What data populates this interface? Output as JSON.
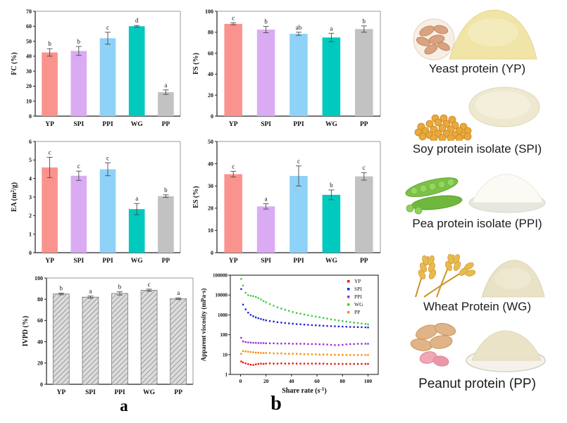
{
  "figure": {
    "panel_a": "a",
    "panel_b": "b"
  },
  "colors": {
    "bar_series": [
      "#FA938E",
      "#DAABF2",
      "#8FD2F7",
      "#00C9BE",
      "#C2C2C2"
    ],
    "hatch_fill": "#DCDCDC",
    "hatch_line": "#8A8A8A",
    "axis_dark": "#222222",
    "axis_light": "#999999",
    "error_bar": "#4A4A4A",
    "scatter": {
      "YP": "#EE1111",
      "SPI": "#2323DD",
      "PPI": "#9B30D6",
      "WG": "#3FCB3F",
      "PP": "#FF8C00"
    }
  },
  "chart_data": [
    {
      "id": "fc",
      "type": "bar",
      "ylabel": "FC (%)",
      "categories": [
        "YP",
        "SPI",
        "PPI",
        "WG",
        "PP"
      ],
      "values": [
        42.5,
        43.5,
        52,
        60,
        16
      ],
      "errors": [
        2.5,
        3,
        4,
        0.5,
        1.5
      ],
      "letters": [
        "b",
        "b",
        "c",
        "d",
        "a"
      ],
      "ylim": [
        0,
        70
      ],
      "yticks": [
        0,
        10,
        20,
        30,
        40,
        50,
        60,
        70
      ],
      "hatch": false
    },
    {
      "id": "fs",
      "type": "bar",
      "ylabel": "FS (%)",
      "categories": [
        "YP",
        "SPI",
        "PPI",
        "WG",
        "PP"
      ],
      "values": [
        88,
        82.5,
        78.5,
        75,
        83
      ],
      "errors": [
        1,
        3,
        1.5,
        4,
        3
      ],
      "letters": [
        "c",
        "b",
        "ab",
        "a",
        "b"
      ],
      "ylim": [
        0,
        100
      ],
      "yticks": [
        0,
        20,
        40,
        60,
        80,
        100
      ],
      "hatch": false
    },
    {
      "id": "ea",
      "type": "bar",
      "ylabel": "EA (m^{2}/g)",
      "categories": [
        "YP",
        "SPI",
        "PPI",
        "WG",
        "PP"
      ],
      "values": [
        4.6,
        4.15,
        4.5,
        2.35,
        3.05
      ],
      "errors": [
        0.55,
        0.25,
        0.35,
        0.3,
        0.07
      ],
      "letters": [
        "c",
        "c",
        "c",
        "a",
        "b"
      ],
      "ylim": [
        0,
        6
      ],
      "yticks": [
        0,
        1,
        2,
        3,
        4,
        5,
        6
      ],
      "hatch": false
    },
    {
      "id": "es",
      "type": "bar",
      "ylabel": "ES (%)",
      "categories": [
        "YP",
        "SPI",
        "PPI",
        "WG",
        "PP"
      ],
      "values": [
        35.3,
        20.8,
        34.5,
        26,
        34.3
      ],
      "errors": [
        1.3,
        1.2,
        4.5,
        2.2,
        1.7
      ],
      "letters": [
        "c",
        "a",
        "c",
        "b",
        "c"
      ],
      "ylim": [
        0,
        50
      ],
      "yticks": [
        0,
        10,
        20,
        30,
        40,
        50
      ],
      "hatch": false
    },
    {
      "id": "ivpd",
      "type": "bar",
      "ylabel": "IVPD (%)",
      "categories": [
        "YP",
        "SPI",
        "PPI",
        "WG",
        "PP"
      ],
      "values": [
        85,
        82,
        85.5,
        88.5,
        80.5
      ],
      "errors": [
        0.8,
        1,
        1.5,
        1,
        0.8
      ],
      "letters": [
        "b",
        "a",
        "b",
        "c",
        "a"
      ],
      "ylim": [
        0,
        100
      ],
      "yticks": [
        0,
        20,
        40,
        60,
        80,
        100
      ],
      "hatch": true
    },
    {
      "id": "visc",
      "type": "scatter",
      "ylabel": "Apparent viscosity (mPa·s)",
      "xlabel": "Share rate (s^{-1})",
      "xticks": [
        0,
        20,
        40,
        60,
        80,
        100
      ],
      "yticks": [
        1,
        10,
        100,
        1000,
        10000,
        100000
      ],
      "xlim": [
        -8,
        108
      ],
      "ylog_decades": 5,
      "x": [
        0.5,
        2,
        4,
        6,
        8,
        10,
        12,
        14,
        16,
        18,
        20,
        23,
        26,
        29,
        32,
        35,
        38,
        41,
        44,
        47,
        50,
        53,
        56,
        59,
        62,
        65,
        68,
        71,
        74,
        77,
        80,
        83,
        86,
        89,
        92,
        95,
        98,
        100
      ],
      "series": [
        {
          "name": "YP",
          "y": [
            4.5,
            4.0,
            3.6,
            3.3,
            3.1,
            3.0,
            3.2,
            3.4,
            3.5,
            3.4,
            3.5,
            3.6,
            3.5,
            3.5,
            3.6,
            3.5,
            3.5,
            3.6,
            3.5,
            3.5,
            3.5,
            3.5,
            3.5,
            3.5,
            3.5,
            3.5,
            3.4,
            3.4,
            3.4,
            3.4,
            3.4,
            3.4,
            3.4,
            3.4,
            3.4,
            3.4,
            3.4,
            3.4
          ]
        },
        {
          "name": "SPI",
          "y": [
            20000,
            3300,
            1900,
            1300,
            1000,
            850,
            750,
            680,
            620,
            570,
            530,
            490,
            460,
            430,
            410,
            390,
            375,
            360,
            345,
            335,
            325,
            315,
            305,
            298,
            290,
            283,
            277,
            271,
            266,
            261,
            256,
            252,
            248,
            245,
            242,
            239,
            236,
            233
          ]
        },
        {
          "name": "PPI",
          "y": [
            70,
            46,
            43,
            41,
            40,
            39,
            39,
            38,
            38,
            38,
            37,
            37,
            37,
            36,
            36,
            36,
            36,
            35,
            35,
            35,
            35,
            34,
            34,
            34,
            33,
            33,
            32,
            31,
            30,
            30,
            31,
            33,
            34,
            34,
            35,
            35,
            35,
            35
          ]
        },
        {
          "name": "WG",
          "y": [
            65000,
            30000,
            13000,
            9800,
            9200,
            8800,
            8000,
            7000,
            6000,
            5000,
            4300,
            3500,
            2900,
            2400,
            2100,
            1800,
            1600,
            1400,
            1250,
            1150,
            1050,
            950,
            880,
            820,
            760,
            700,
            650,
            600,
            560,
            520,
            490,
            460,
            430,
            410,
            390,
            370,
            350,
            330
          ]
        },
        {
          "name": "PP",
          "y": [
            11,
            15,
            14.5,
            14,
            13.5,
            13,
            12.5,
            12.5,
            12,
            12,
            12,
            12,
            11.5,
            11.5,
            11.5,
            11,
            11,
            11,
            11,
            10.8,
            10.5,
            10.5,
            10.3,
            10.2,
            10,
            10,
            10,
            9.8,
            9.8,
            9.7,
            9.6,
            9.6,
            9.5,
            9.5,
            9.5,
            9.5,
            9.5,
            9.5
          ]
        }
      ],
      "legend": [
        "YP",
        "SPI",
        "PPI",
        "WG",
        "PP"
      ]
    }
  ],
  "proteins": [
    {
      "label": "Yeast protein (YP)"
    },
    {
      "label": "Soy protein isolate (SPI)"
    },
    {
      "label": "Pea protein isolate (PPI)"
    },
    {
      "label": "Wheat Protein (WG)"
    },
    {
      "label": "Peanut protein (PP)"
    }
  ]
}
